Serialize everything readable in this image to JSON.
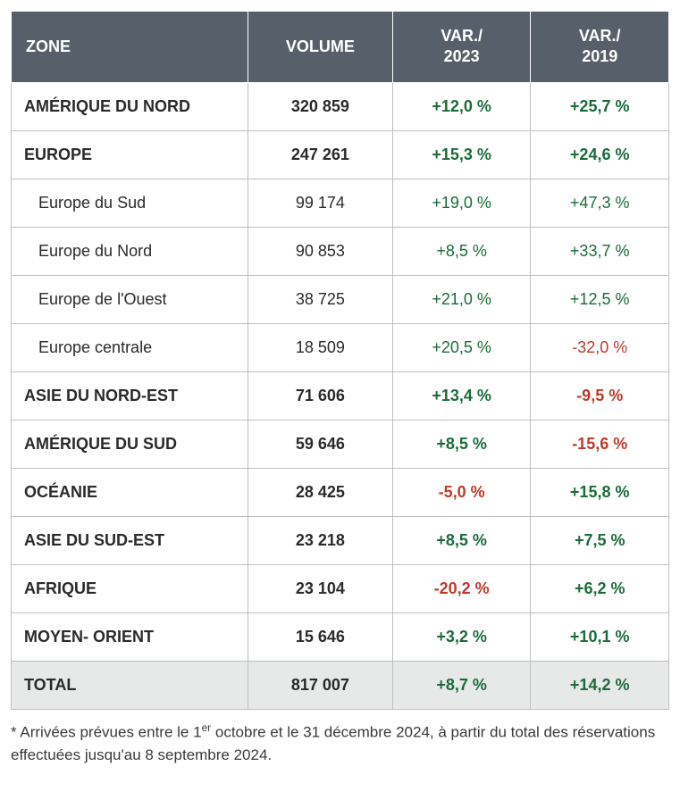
{
  "table": {
    "type": "table",
    "columns": [
      {
        "key": "zone",
        "label": "ZONE",
        "align": "left"
      },
      {
        "key": "volume",
        "label": "VOLUME",
        "align": "center"
      },
      {
        "key": "var2023",
        "label": "VAR./\n2023",
        "align": "center"
      },
      {
        "key": "var2019",
        "label": "VAR./\n2019",
        "align": "center"
      }
    ],
    "column_widths_pct": [
      36,
      22,
      21,
      21
    ],
    "header_bg": "#57606a",
    "header_fg": "#ffffff",
    "header_fontsize": 18,
    "header_fontweight": 700,
    "body_fontsize": 18,
    "border_color": "#bfbfbf",
    "total_bg": "#e7e8e8",
    "positive_color": "#1b6b3a",
    "negative_color": "#c0392b",
    "text_color": "#2a2a2a",
    "rows": [
      {
        "level": 0,
        "zone": "AMÉRIQUE DU NORD",
        "volume": "320 859",
        "var2023": {
          "text": "+12,0 %",
          "sign": "pos"
        },
        "var2019": {
          "text": "+25,7 %",
          "sign": "pos"
        }
      },
      {
        "level": 0,
        "zone": "EUROPE",
        "volume": "247 261",
        "var2023": {
          "text": "+15,3 %",
          "sign": "pos"
        },
        "var2019": {
          "text": "+24,6 %",
          "sign": "pos"
        }
      },
      {
        "level": 1,
        "zone": "Europe du Sud",
        "volume": "99 174",
        "var2023": {
          "text": "+19,0 %",
          "sign": "pos"
        },
        "var2019": {
          "text": "+47,3 %",
          "sign": "pos"
        }
      },
      {
        "level": 1,
        "zone": "Europe du Nord",
        "volume": "90 853",
        "var2023": {
          "text": "+8,5 %",
          "sign": "pos"
        },
        "var2019": {
          "text": "+33,7 %",
          "sign": "pos"
        }
      },
      {
        "level": 1,
        "zone": "Europe de l'Ouest",
        "volume": "38 725",
        "var2023": {
          "text": "+21,0 %",
          "sign": "pos"
        },
        "var2019": {
          "text": "+12,5 %",
          "sign": "pos"
        }
      },
      {
        "level": 1,
        "zone": "Europe centrale",
        "volume": "18 509",
        "var2023": {
          "text": "+20,5 %",
          "sign": "pos"
        },
        "var2019": {
          "text": "-32,0 %",
          "sign": "neg"
        }
      },
      {
        "level": 0,
        "zone": "ASIE DU NORD-EST",
        "volume": "71 606",
        "var2023": {
          "text": "+13,4 %",
          "sign": "pos"
        },
        "var2019": {
          "text": "-9,5 %",
          "sign": "neg"
        }
      },
      {
        "level": 0,
        "zone": "AMÉRIQUE DU SUD",
        "volume": "59 646",
        "var2023": {
          "text": "+8,5 %",
          "sign": "pos"
        },
        "var2019": {
          "text": "-15,6 %",
          "sign": "neg"
        }
      },
      {
        "level": 0,
        "zone": "OCÉANIE",
        "volume": "28 425",
        "var2023": {
          "text": "-5,0 %",
          "sign": "neg"
        },
        "var2019": {
          "text": "+15,8 %",
          "sign": "pos"
        }
      },
      {
        "level": 0,
        "zone": "ASIE DU SUD-EST",
        "volume": "23 218",
        "var2023": {
          "text": "+8,5 %",
          "sign": "pos"
        },
        "var2019": {
          "text": "+7,5 %",
          "sign": "pos"
        }
      },
      {
        "level": 0,
        "zone": "AFRIQUE",
        "volume": "23 104",
        "var2023": {
          "text": "-20,2 %",
          "sign": "neg"
        },
        "var2019": {
          "text": "+6,2 %",
          "sign": "pos"
        }
      },
      {
        "level": 0,
        "zone": "MOYEN- ORIENT",
        "volume": "15 646",
        "var2023": {
          "text": "+3,2 %",
          "sign": "pos"
        },
        "var2019": {
          "text": "+10,1 %",
          "sign": "pos"
        }
      }
    ],
    "total_row": {
      "zone": "TOTAL",
      "volume": "817 007",
      "var2023": {
        "text": "+8,7 %",
        "sign": "pos"
      },
      "var2019": {
        "text": "+14,2 %",
        "sign": "pos"
      }
    }
  },
  "footnote": {
    "prefix": "* Arrivées prévues entre le 1",
    "sup": "er",
    "suffix": " octobre et le 31 décembre 2024, à partir du total des réservations effectuées jusqu'au 8 septembre 2024.",
    "fontsize": 17,
    "color": "#3a3a3a"
  }
}
